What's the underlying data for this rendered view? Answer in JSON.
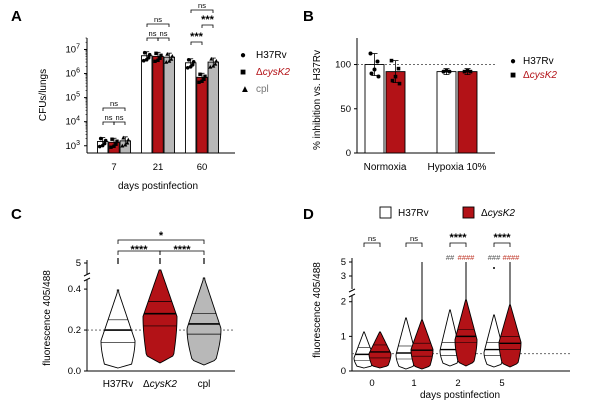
{
  "colors": {
    "h37rv": "#ffffff",
    "cysk2": "#b31217",
    "cpl": "#b8b8b8",
    "hash_red": "#c0392b",
    "axis": "#000000"
  },
  "chart_data": [
    {
      "panel": "A",
      "type": "bar",
      "ylabel": "CFUs/lungs",
      "xlabel": "days postinfection",
      "yscale": "log",
      "ylim": [
        500,
        30000000
      ],
      "y_ticks": [
        {
          "v": 1000,
          "base": "10",
          "exp": "3"
        },
        {
          "v": 10000,
          "base": "10",
          "exp": "4"
        },
        {
          "v": 100000,
          "base": "10",
          "exp": "5"
        },
        {
          "v": 1000000,
          "base": "10",
          "exp": "6"
        },
        {
          "v": 10000000,
          "base": "10",
          "exp": "7"
        }
      ],
      "categories": [
        "7",
        "21",
        "60"
      ],
      "series": [
        {
          "name": "H37Rv",
          "values": [
            1500,
            5500000,
            2800000
          ],
          "marker": "circle"
        },
        {
          "name": "ΔcysK2",
          "values": [
            1400,
            5200000,
            700000
          ],
          "marker": "square"
        },
        {
          "name": "cpl",
          "values": [
            1600,
            4800000,
            3000000
          ],
          "marker": "triangle"
        }
      ],
      "legend": [
        {
          "marker": "●",
          "pre": "H37Rv",
          "italic": "",
          "color": "#000000"
        },
        {
          "marker": "■",
          "pre": "Δ",
          "italic": "cysK2",
          "color": "#b31217"
        },
        {
          "marker": "▲",
          "pre": "cpl",
          "italic": "",
          "color": "#777777"
        }
      ],
      "annotations": {
        "ns": "ns",
        "stars3": "***"
      }
    },
    {
      "panel": "B",
      "type": "bar",
      "ylabel": "% inhibition vs. H37Rv",
      "ylim": [
        0,
        130
      ],
      "y_ticks": [
        "0",
        "50",
        "100"
      ],
      "categories": [
        "Normoxia",
        "Hypoxia 10%"
      ],
      "reference_line": 100,
      "series": [
        {
          "name": "H37Rv",
          "values": [
            100,
            92
          ]
        },
        {
          "name": "ΔcysK2",
          "values": [
            92,
            92
          ]
        }
      ],
      "legend": [
        {
          "marker": "●",
          "pre": "H37Rv",
          "italic": "",
          "color": "#000000"
        },
        {
          "marker": "■",
          "pre": "Δ",
          "italic": "cysK2",
          "color": "#b31217"
        }
      ]
    },
    {
      "panel": "C",
      "type": "violin",
      "ylabel": "fluorescence 405/488",
      "y_ticks": [
        "0.0",
        "0.2",
        "0.4",
        "5"
      ],
      "reference_line": 0.2,
      "categories": [
        {
          "pre": "H37Rv",
          "italic": ""
        },
        {
          "pre": "Δ",
          "italic": "cysK2"
        },
        {
          "pre": "cpl",
          "italic": ""
        }
      ],
      "series": [
        {
          "name": "H37Rv",
          "median": 0.2,
          "q1": 0.14,
          "q3": 0.25
        },
        {
          "name": "ΔcysK2",
          "median": 0.28,
          "q1": 0.22,
          "q3": 0.34
        },
        {
          "name": "cpl",
          "median": 0.23,
          "q1": 0.18,
          "q3": 0.28
        }
      ],
      "annotations": {
        "star1": "*",
        "star4": "****"
      }
    },
    {
      "panel": "D",
      "type": "violin",
      "ylabel": "fluorescence 405/488",
      "xlabel": "days postinfection",
      "y_ticks": [
        "0",
        "1",
        "2",
        "3",
        "5"
      ],
      "reference_line": 0.5,
      "categories": [
        "0",
        "1",
        "2",
        "5"
      ],
      "series": [
        {
          "name": "H37Rv",
          "medians": [
            0.48,
            0.52,
            0.62,
            0.62
          ]
        },
        {
          "name": "ΔcysK2",
          "medians": [
            0.55,
            0.6,
            1.0,
            0.8
          ]
        }
      ],
      "legend": [
        {
          "pre": "H37Rv",
          "italic": ""
        },
        {
          "pre": "Δ",
          "italic": "cysK2"
        }
      ],
      "annotations": {
        "ns": "ns",
        "star4": "****",
        "h2": "##",
        "h3": "###",
        "h4": "####"
      }
    }
  ],
  "panel_labels": [
    "A",
    "B",
    "C",
    "D"
  ]
}
